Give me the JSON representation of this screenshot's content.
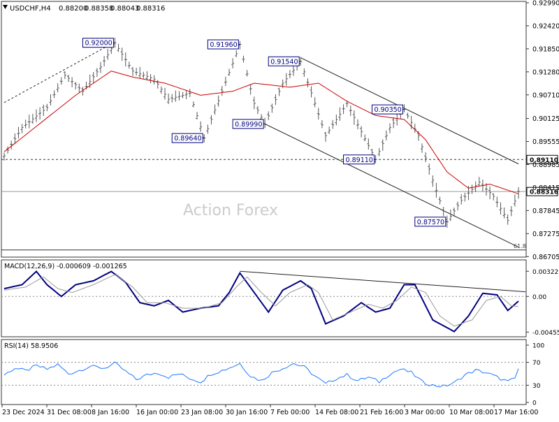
{
  "chart_data": [
    {
      "type": "line",
      "symbol_label": "USDCHF,H4",
      "ohlc": [
        "0.88200",
        "0.88358",
        "0.88043",
        "0.88316"
      ],
      "watermark": "Action Forex",
      "y_ticks": [
        "0.92990",
        "0.92420",
        "0.91850",
        "0.91280",
        "0.90710",
        "0.90125",
        "0.89555",
        "0.88985",
        "0.88415",
        "0.87845",
        "0.87275",
        "0.86705"
      ],
      "ylim": [
        0.8671,
        0.9299
      ],
      "x_ticks": [
        "23 Dec 2024",
        "31 Dec 08:00",
        "8 Jan 16:00",
        "16 Jan 00:00",
        "23 Jan 08:00",
        "30 Jan 16:00",
        "7 Feb 00:00",
        "14 Feb 08:00",
        "21 Feb 16:00",
        "3 Mar 00:00",
        "10 Mar 08:00",
        "17 Mar 16:00"
      ],
      "n_bars": 145,
      "price_anchors": [
        [
          0,
          0.892
        ],
        [
          5,
          0.899
        ],
        [
          12,
          0.904
        ],
        [
          17,
          0.912
        ],
        [
          22,
          0.908
        ],
        [
          27,
          0.914
        ],
        [
          31,
          0.92
        ],
        [
          36,
          0.913
        ],
        [
          42,
          0.911
        ],
        [
          46,
          0.906
        ],
        [
          52,
          0.9075
        ],
        [
          56,
          0.8964
        ],
        [
          61,
          0.908
        ],
        [
          66,
          0.9196
        ],
        [
          70,
          0.905
        ],
        [
          73,
          0.8999
        ],
        [
          78,
          0.91
        ],
        [
          83,
          0.9154
        ],
        [
          87,
          0.905
        ],
        [
          90,
          0.897
        ],
        [
          96,
          0.905
        ],
        [
          100,
          0.898
        ],
        [
          104,
          0.8911
        ],
        [
          108,
          0.899
        ],
        [
          112,
          0.9035
        ],
        [
          116,
          0.897
        ],
        [
          120,
          0.886
        ],
        [
          124,
          0.8757
        ],
        [
          128,
          0.881
        ],
        [
          133,
          0.8855
        ],
        [
          137,
          0.882
        ],
        [
          141,
          0.876
        ],
        [
          144,
          0.8832
        ]
      ],
      "ma_anchors": [
        [
          0,
          0.893
        ],
        [
          10,
          0.9
        ],
        [
          20,
          0.907
        ],
        [
          30,
          0.913
        ],
        [
          36,
          0.9115
        ],
        [
          45,
          0.91
        ],
        [
          55,
          0.907
        ],
        [
          64,
          0.908
        ],
        [
          70,
          0.91
        ],
        [
          80,
          0.909
        ],
        [
          88,
          0.91
        ],
        [
          96,
          0.9055
        ],
        [
          104,
          0.902
        ],
        [
          112,
          0.901
        ],
        [
          118,
          0.896
        ],
        [
          124,
          0.888
        ],
        [
          130,
          0.884
        ],
        [
          136,
          0.885
        ],
        [
          144,
          0.8826
        ]
      ],
      "horizontal_levels": [
        {
          "price": 0.8911,
          "label": "0.89110",
          "style": "dashed",
          "color": "#333333"
        },
        {
          "price": 0.88316,
          "label": "0.88316",
          "style": "solid",
          "color": "#999999"
        },
        {
          "price": 0.8687,
          "label": "61.8",
          "style": "solid",
          "color": "#333333"
        }
      ],
      "channel_lines": [
        {
          "from": [
            0,
            0.9052
          ],
          "to": [
            31,
            0.9202
          ],
          "style": "dashed"
        },
        {
          "from": [
            73,
            0.8999
          ],
          "to": [
            144,
            0.8694
          ],
          "style": "solid"
        },
        {
          "from": [
            83,
            0.9163
          ],
          "to": [
            144,
            0.89
          ],
          "style": "solid"
        }
      ],
      "price_labels": [
        {
          "text": "0.92000",
          "bar": 31,
          "price": 0.92,
          "side": "left"
        },
        {
          "text": "0.91960",
          "bar": 66,
          "price": 0.9196,
          "side": "left"
        },
        {
          "text": "0.91540",
          "bar": 83,
          "price": 0.9154,
          "side": "left"
        },
        {
          "text": "0.90350",
          "bar": 112,
          "price": 0.9035,
          "side": "left"
        },
        {
          "text": "0.89640",
          "bar": 56,
          "price": 0.8964,
          "side": "left"
        },
        {
          "text": "0.89990",
          "bar": 73,
          "price": 0.8999,
          "side": "left"
        },
        {
          "text": "0.89110",
          "bar": 104,
          "price": 0.8911,
          "side": "left"
        },
        {
          "text": "0.87570",
          "bar": 124,
          "price": 0.8757,
          "side": "left"
        }
      ],
      "colors": {
        "price": "#555555",
        "ma": "#cc0000",
        "label_border": "#000080",
        "label_text": "#000080"
      }
    },
    {
      "type": "line",
      "title": "MACD(12,26,9) -0.000609 -0.001265",
      "y_ticks": [
        "0.00322",
        "0.00",
        "-0.004559"
      ],
      "ylim": [
        -0.0048,
        0.0036
      ],
      "zero_dotted": true,
      "series": [
        {
          "name": "MACD",
          "color": "#000080",
          "anchors": [
            [
              0,
              0.001
            ],
            [
              5,
              0.0015
            ],
            [
              9,
              0.0032
            ],
            [
              12,
              0.0015
            ],
            [
              16,
              0.0
            ],
            [
              20,
              0.0015
            ],
            [
              25,
              0.002
            ],
            [
              30,
              0.0032
            ],
            [
              34,
              0.0018
            ],
            [
              38,
              -0.0008
            ],
            [
              42,
              -0.0012
            ],
            [
              46,
              -0.0005
            ],
            [
              50,
              -0.002
            ],
            [
              55,
              -0.0015
            ],
            [
              60,
              -0.0012
            ],
            [
              63,
              0.0005
            ],
            [
              66,
              0.003
            ],
            [
              70,
              0.0005
            ],
            [
              74,
              -0.002
            ],
            [
              78,
              0.0008
            ],
            [
              83,
              0.002
            ],
            [
              86,
              0.001
            ],
            [
              90,
              -0.0035
            ],
            [
              95,
              -0.0025
            ],
            [
              100,
              -0.0008
            ],
            [
              104,
              -0.002
            ],
            [
              108,
              -0.0015
            ],
            [
              112,
              0.0015
            ],
            [
              115,
              0.0015
            ],
            [
              120,
              -0.003
            ],
            [
              124,
              -0.004
            ],
            [
              126,
              -0.0045
            ],
            [
              130,
              -0.0025
            ],
            [
              134,
              0.0004
            ],
            [
              138,
              0.0002
            ],
            [
              141,
              -0.0018
            ],
            [
              144,
              -0.0006
            ]
          ]
        },
        {
          "name": "Signal",
          "color": "#999999",
          "anchors": [
            [
              0,
              0.0008
            ],
            [
              6,
              0.0012
            ],
            [
              11,
              0.0025
            ],
            [
              15,
              0.001
            ],
            [
              19,
              0.0005
            ],
            [
              25,
              0.0015
            ],
            [
              31,
              0.0028
            ],
            [
              36,
              0.0012
            ],
            [
              40,
              -0.0008
            ],
            [
              45,
              -0.0008
            ],
            [
              50,
              -0.0015
            ],
            [
              56,
              -0.0015
            ],
            [
              61,
              -0.0008
            ],
            [
              65,
              0.0012
            ],
            [
              68,
              0.0025
            ],
            [
              72,
              0.0005
            ],
            [
              76,
              -0.0012
            ],
            [
              80,
              0.0005
            ],
            [
              85,
              0.0015
            ],
            [
              88,
              0.0005
            ],
            [
              92,
              -0.003
            ],
            [
              97,
              -0.002
            ],
            [
              102,
              -0.001
            ],
            [
              106,
              -0.0015
            ],
            [
              110,
              -0.0005
            ],
            [
              114,
              0.0012
            ],
            [
              118,
              0.0005
            ],
            [
              122,
              -0.0025
            ],
            [
              126,
              -0.0038
            ],
            [
              131,
              -0.003
            ],
            [
              135,
              -0.0005
            ],
            [
              139,
              0.0
            ],
            [
              142,
              -0.0012
            ],
            [
              144,
              -0.0013
            ]
          ]
        }
      ],
      "trendline": {
        "from": [
          66,
          0.00322
        ],
        "to": [
          144,
          0.0006
        ]
      }
    },
    {
      "type": "line",
      "title": "RSI(14) 58.9506",
      "y_ticks": [
        "100",
        "70",
        "30",
        "0"
      ],
      "ylim": [
        0,
        100
      ],
      "dotted_levels": [
        70,
        30
      ],
      "series": [
        {
          "name": "RSI",
          "color": "#1e78ff",
          "anchors": [
            [
              0,
              48
            ],
            [
              3,
              60
            ],
            [
              6,
              55
            ],
            [
              9,
              64
            ],
            [
              12,
              58
            ],
            [
              15,
              66
            ],
            [
              18,
              50
            ],
            [
              21,
              56
            ],
            [
              24,
              63
            ],
            [
              28,
              60
            ],
            [
              31,
              68
            ],
            [
              34,
              54
            ],
            [
              37,
              40
            ],
            [
              40,
              48
            ],
            [
              43,
              52
            ],
            [
              46,
              44
            ],
            [
              49,
              50
            ],
            [
              52,
              42
            ],
            [
              55,
              36
            ],
            [
              58,
              50
            ],
            [
              62,
              58
            ],
            [
              66,
              68
            ],
            [
              69,
              46
            ],
            [
              72,
              38
            ],
            [
              75,
              52
            ],
            [
              78,
              60
            ],
            [
              81,
              68
            ],
            [
              84,
              62
            ],
            [
              87,
              46
            ],
            [
              90,
              32
            ],
            [
              93,
              42
            ],
            [
              96,
              48
            ],
            [
              99,
              38
            ],
            [
              102,
              44
            ],
            [
              105,
              36
            ],
            [
              108,
              50
            ],
            [
              111,
              58
            ],
            [
              114,
              52
            ],
            [
              117,
              36
            ],
            [
              120,
              30
            ],
            [
              123,
              28
            ],
            [
              126,
              34
            ],
            [
              129,
              48
            ],
            [
              132,
              56
            ],
            [
              135,
              52
            ],
            [
              138,
              44
            ],
            [
              141,
              36
            ],
            [
              143,
              42
            ],
            [
              144,
              59
            ]
          ]
        }
      ]
    }
  ]
}
